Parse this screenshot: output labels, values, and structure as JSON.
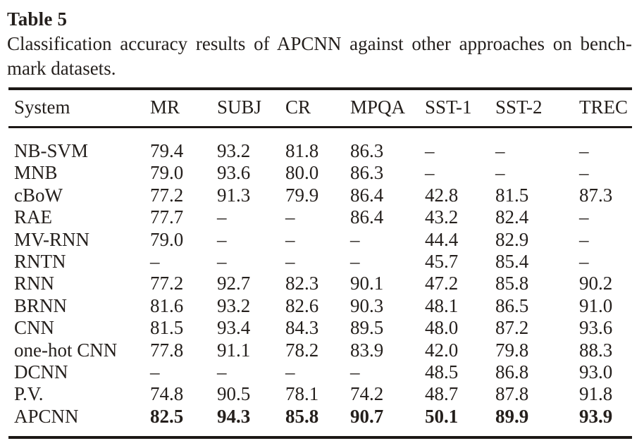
{
  "page": {
    "background": "#ffffff",
    "text_color": "#241f1c",
    "rule_color": "#1c1815"
  },
  "title": "Table 5",
  "caption": {
    "line1": "Classification accuracy results of APCNN against other approaches on bench-",
    "line2": "mark datasets."
  },
  "table": {
    "columns": [
      "System",
      "MR",
      "SUBJ",
      "CR",
      "MPQA",
      "SST-1",
      "SST-2",
      "TREC"
    ],
    "missing_value_symbol": "–",
    "rows": [
      {
        "system": "NB-SVM",
        "values": [
          "79.4",
          "93.2",
          "81.8",
          "86.3",
          "–",
          "–",
          "–"
        ],
        "bold": false
      },
      {
        "system": "MNB",
        "values": [
          "79.0",
          "93.6",
          "80.0",
          "86.3",
          "–",
          "–",
          "–"
        ],
        "bold": false
      },
      {
        "system": "cBoW",
        "values": [
          "77.2",
          "91.3",
          "79.9",
          "86.4",
          "42.8",
          "81.5",
          "87.3"
        ],
        "bold": false
      },
      {
        "system": "RAE",
        "values": [
          "77.7",
          "–",
          "–",
          "86.4",
          "43.2",
          "82.4",
          "–"
        ],
        "bold": false
      },
      {
        "system": "MV-RNN",
        "values": [
          "79.0",
          "–",
          "–",
          "–",
          "44.4",
          "82.9",
          "–"
        ],
        "bold": false
      },
      {
        "system": "RNTN",
        "values": [
          "–",
          "–",
          "–",
          "–",
          "45.7",
          "85.4",
          "–"
        ],
        "bold": false
      },
      {
        "system": "RNN",
        "values": [
          "77.2",
          "92.7",
          "82.3",
          "90.1",
          "47.2",
          "85.8",
          "90.2"
        ],
        "bold": false
      },
      {
        "system": "BRNN",
        "values": [
          "81.6",
          "93.2",
          "82.6",
          "90.3",
          "48.1",
          "86.5",
          "91.0"
        ],
        "bold": false
      },
      {
        "system": "CNN",
        "values": [
          "81.5",
          "93.4",
          "84.3",
          "89.5",
          "48.0",
          "87.2",
          "93.6"
        ],
        "bold": false
      },
      {
        "system": "one-hot CNN",
        "values": [
          "77.8",
          "91.1",
          "78.2",
          "83.9",
          "42.0",
          "79.8",
          "88.3"
        ],
        "bold": false
      },
      {
        "system": "DCNN",
        "values": [
          "–",
          "–",
          "–",
          "–",
          "48.5",
          "86.8",
          "93.0"
        ],
        "bold": false
      },
      {
        "system": "P.V.",
        "values": [
          "74.8",
          "90.5",
          "78.1",
          "74.2",
          "48.7",
          "87.8",
          "91.8"
        ],
        "bold": false
      },
      {
        "system": "APCNN",
        "values": [
          "82.5",
          "94.3",
          "85.8",
          "90.7",
          "50.1",
          "89.9",
          "93.9"
        ],
        "bold": true
      }
    ]
  }
}
